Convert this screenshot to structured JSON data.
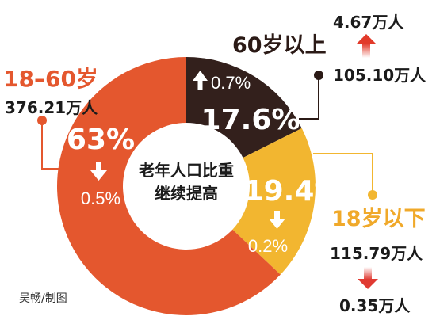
{
  "chart_data": {
    "type": "pie",
    "variant": "donut",
    "center_label_lines": [
      "老年人口比重",
      "继续提高"
    ],
    "series": [
      {
        "name": "60岁以上",
        "share_label": "17.6%",
        "value": 17.6,
        "change_label": "0.7%",
        "change_direction": "up",
        "count_label": "105.10万人",
        "count_change_label": "4.67万人",
        "count_change_direction": "up",
        "color": "#33201c"
      },
      {
        "name": "18岁以下",
        "share_label": "19.4%",
        "value": 19.4,
        "change_label": "0.2%",
        "change_direction": "down",
        "count_label": "115.79万人",
        "count_change_label": "0.35万人",
        "count_change_direction": "down",
        "color": "#f2b630"
      },
      {
        "name": "18–60岁",
        "share_label": "63%",
        "value": 63,
        "change_label": "0.5%",
        "change_direction": "down",
        "count_label": "376.21万人",
        "color": "#e4572e"
      }
    ]
  },
  "credit": "吴畅/制图",
  "colors": {
    "name_60_plus": "#2b1a16",
    "name_under_18": "#f0a92a",
    "name_18_60": "#e4572e",
    "connector": "#2b1a16",
    "arrow_up_red": "#e23a2a",
    "arrow_down_red": "#e03a32",
    "arrow_white": "#ffffff"
  }
}
